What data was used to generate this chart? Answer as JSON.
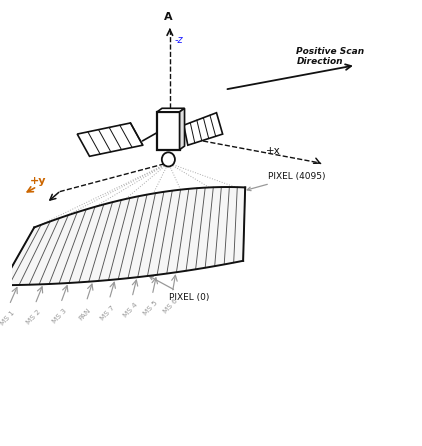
{
  "bg_color": "#ffffff",
  "axis_color": "#333333",
  "orange_color": "#cc6600",
  "gray_color": "#999999",
  "dark_color": "#111111",
  "label_pixel_4095": "PIXEL (4095)",
  "label_pixel_0": "PIXEL (0)",
  "label_pos_scan": "Positive Scan\nDirection",
  "label_x": "+x",
  "label_y": "+y",
  "label_z": "-z",
  "band_labels": [
    "MS 1",
    "MS 2",
    "MS 3",
    "PAN",
    "MS 7",
    "MS 4",
    "MS 5",
    "MS 6"
  ],
  "figsize": [
    4.22,
    4.46
  ],
  "dpi": 100
}
